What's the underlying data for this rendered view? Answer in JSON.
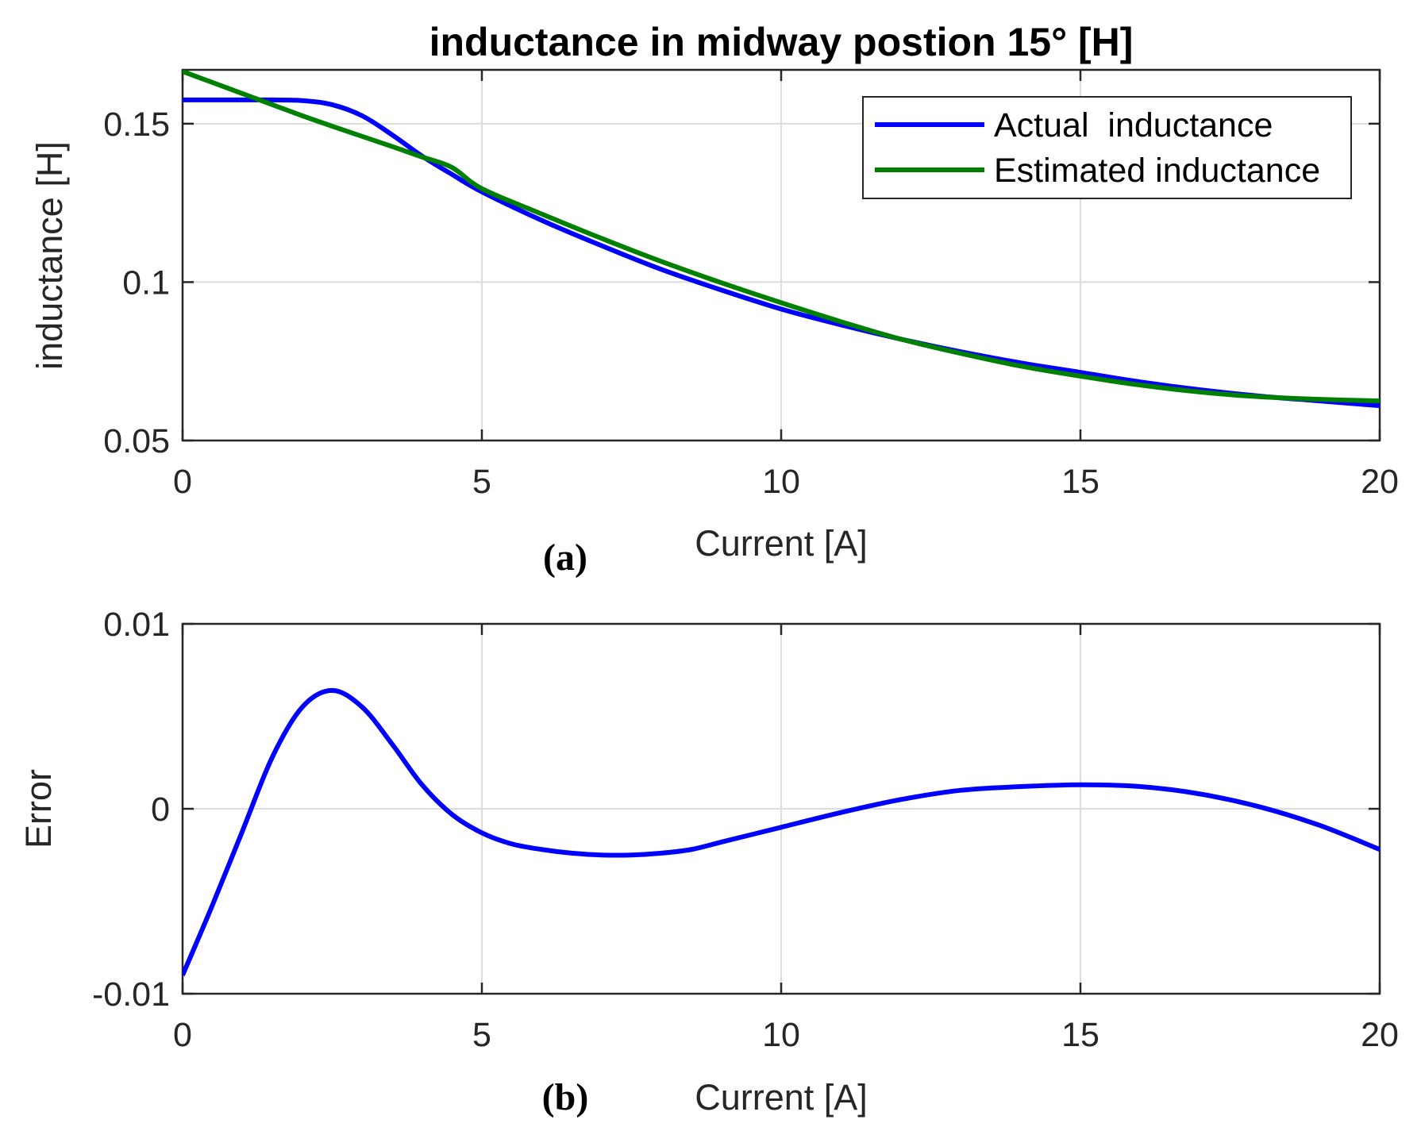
{
  "figure": {
    "panel_a_label": "(a)",
    "panel_b_label": "(b)"
  },
  "chart_data": [
    {
      "type": "line",
      "title": "inductance in midway postion 15° [H]",
      "xlabel": "Current [A]",
      "ylabel": "inductance [H]",
      "xlim": [
        0,
        20
      ],
      "ylim": [
        0.05,
        0.167
      ],
      "xticks": [
        0,
        5,
        10,
        15,
        20
      ],
      "xtick_labels": [
        "0",
        "5",
        "10",
        "15",
        "20"
      ],
      "yticks": [
        0.05,
        0.1,
        0.15
      ],
      "ytick_labels": [
        "0.05",
        "0.1",
        "0.15"
      ],
      "grid": true,
      "legend_position": "top-right",
      "series": [
        {
          "name": "Actual  inductance",
          "color": "#0000ff",
          "x": [
            0,
            0.5,
            1,
            1.5,
            2,
            2.5,
            3,
            3.5,
            4,
            4.5,
            5,
            6,
            7,
            8,
            9,
            10,
            11,
            12,
            13,
            14,
            15,
            16,
            17,
            18,
            19,
            20
          ],
          "values": [
            0.1575,
            0.1575,
            0.1575,
            0.1575,
            0.1573,
            0.156,
            0.1525,
            0.1465,
            0.1398,
            0.134,
            0.1285,
            0.1195,
            0.1115,
            0.104,
            0.0975,
            0.0915,
            0.0865,
            0.082,
            0.078,
            0.0745,
            0.0715,
            0.0685,
            0.066,
            0.064,
            0.0625,
            0.061
          ]
        },
        {
          "name": "Estimated inductance",
          "color": "#008000",
          "x": [
            0,
            0.5,
            1,
            1.5,
            2,
            2.5,
            3,
            3.5,
            4,
            4.5,
            5,
            6,
            7,
            8,
            9,
            10,
            11,
            12,
            13,
            14,
            15,
            16,
            17,
            18,
            19,
            20
          ],
          "values": [
            0.1665,
            0.163,
            0.1595,
            0.156,
            0.1525,
            0.1492,
            0.146,
            0.1428,
            0.1395,
            0.1362,
            0.1295,
            0.1215,
            0.1138,
            0.1065,
            0.0998,
            0.0935,
            0.0875,
            0.082,
            0.0775,
            0.0735,
            0.0703,
            0.0675,
            0.0653,
            0.0638,
            0.063,
            0.0625
          ]
        }
      ]
    },
    {
      "type": "line",
      "title": "",
      "xlabel": "Current [A]",
      "ylabel": "Error",
      "xlim": [
        0,
        20
      ],
      "ylim": [
        -0.01,
        0.01
      ],
      "xticks": [
        0,
        5,
        10,
        15,
        20
      ],
      "xtick_labels": [
        "0",
        "5",
        "10",
        "15",
        "20"
      ],
      "yticks": [
        -0.01,
        0,
        0.01
      ],
      "ytick_labels": [
        "-0.01",
        "0",
        "0.01"
      ],
      "grid": true,
      "series": [
        {
          "name": "Error",
          "color": "#0000ff",
          "x": [
            0,
            0.5,
            1,
            1.5,
            2,
            2.5,
            3,
            3.5,
            4,
            4.5,
            5,
            5.5,
            6,
            6.5,
            7,
            7.5,
            8,
            8.5,
            9,
            9.5,
            10,
            11,
            12,
            13,
            14,
            15,
            16,
            17,
            18,
            19,
            20
          ],
          "values": [
            -0.009,
            -0.0052,
            -0.0012,
            0.0028,
            0.0055,
            0.0064,
            0.0055,
            0.0035,
            0.0013,
            -0.0003,
            -0.0013,
            -0.0019,
            -0.0022,
            -0.0024,
            -0.0025,
            -0.0025,
            -0.0024,
            -0.0022,
            -0.0018,
            -0.0014,
            -0.001,
            -0.0002,
            0.0005,
            0.001,
            0.0012,
            0.0013,
            0.0012,
            0.0008,
            0.0001,
            -0.0009,
            -0.0022
          ]
        }
      ]
    }
  ]
}
